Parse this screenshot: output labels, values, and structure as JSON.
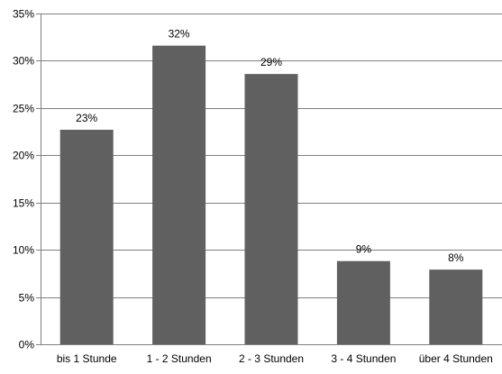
{
  "chart_data": {
    "type": "bar",
    "categories": [
      "bis 1 Stunde",
      "1 - 2 Stunden",
      "2 - 3 Stunden",
      "3 - 4 Stunden",
      "über 4 Stunden"
    ],
    "values": [
      22.7,
      31.6,
      28.6,
      8.8,
      7.9
    ],
    "data_labels": [
      "23%",
      "32%",
      "29%",
      "9%",
      "8%"
    ],
    "ylim": [
      0,
      35
    ],
    "yticks": [
      0,
      5,
      10,
      15,
      20,
      25,
      30,
      35
    ],
    "ytick_labels": [
      "0%",
      "5%",
      "10%",
      "15%",
      "20%",
      "25%",
      "30%",
      "35%"
    ],
    "title": "",
    "xlabel": "",
    "ylabel": "",
    "grid": true,
    "bar_color": "#606060",
    "grid_color": "#808080"
  }
}
